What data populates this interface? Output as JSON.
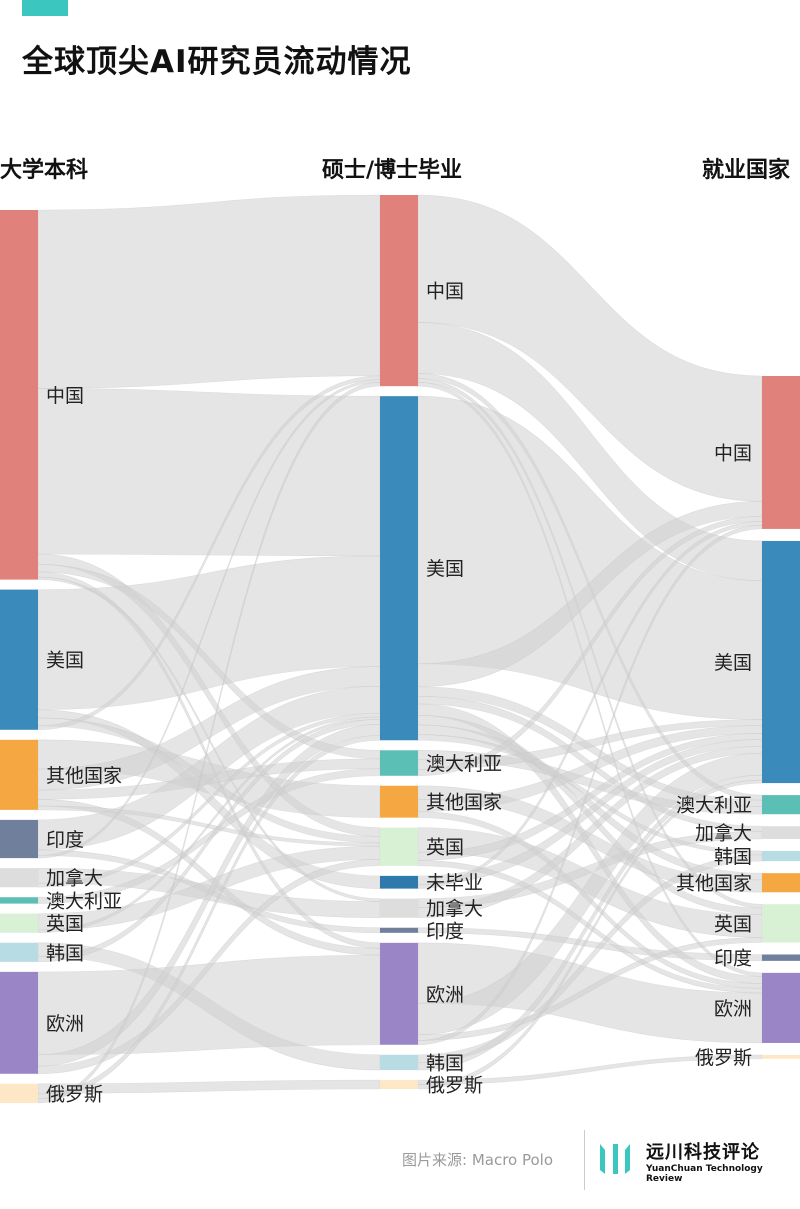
{
  "header": {
    "title": "全球顶尖AI研究员流动情况",
    "accent_color": "#3bc7bf"
  },
  "columns": {
    "undergrad": "大学本科",
    "graduate": "硕士/博士毕业",
    "employment": "就业国家"
  },
  "footer": {
    "source": "图片来源: Macro Polo",
    "brand_name": "远川科技评论",
    "brand_sub": "YuanChuan Technology Review"
  },
  "colors": {
    "中国": "#e0827b",
    "美国": "#3a8bbb",
    "其他国家": "#f5a742",
    "印度": "#6f7f9c",
    "加拿大": "#dddddd",
    "澳大利亚": "#5bbfb5",
    "英国": "#d8f0d3",
    "韩国": "#b8dce3",
    "欧洲": "#9a86c7",
    "俄罗斯": "#fde7c4",
    "未毕业": "#2e7aad",
    "link": "#cfcfcf"
  },
  "chart_data": {
    "type": "sankey",
    "title": "全球顶尖AI研究员流动情况",
    "stages": [
      "大学本科",
      "硕士/博士毕业",
      "就业国家"
    ],
    "nodes": [
      {
        "stage": 0,
        "name": "中国",
        "value": 29
      },
      {
        "stage": 0,
        "name": "美国",
        "value": 11
      },
      {
        "stage": 0,
        "name": "其他国家",
        "value": 5.5
      },
      {
        "stage": 0,
        "name": "印度",
        "value": 3
      },
      {
        "stage": 0,
        "name": "加拿大",
        "value": 1.5
      },
      {
        "stage": 0,
        "name": "澳大利亚",
        "value": 0.5
      },
      {
        "stage": 0,
        "name": "英国",
        "value": 1.5
      },
      {
        "stage": 0,
        "name": "韩国",
        "value": 1.5
      },
      {
        "stage": 0,
        "name": "欧洲",
        "value": 8
      },
      {
        "stage": 0,
        "name": "俄罗斯",
        "value": 1.5
      },
      {
        "stage": 1,
        "name": "中国",
        "value": 15
      },
      {
        "stage": 1,
        "name": "美国",
        "value": 27
      },
      {
        "stage": 1,
        "name": "澳大利亚",
        "value": 2
      },
      {
        "stage": 1,
        "name": "其他国家",
        "value": 2.5
      },
      {
        "stage": 1,
        "name": "英国",
        "value": 3
      },
      {
        "stage": 1,
        "name": "未毕业",
        "value": 1
      },
      {
        "stage": 1,
        "name": "加拿大",
        "value": 1.5
      },
      {
        "stage": 1,
        "name": "印度",
        "value": 0.4
      },
      {
        "stage": 1,
        "name": "欧洲",
        "value": 8
      },
      {
        "stage": 1,
        "name": "韩国",
        "value": 1.2
      },
      {
        "stage": 1,
        "name": "俄罗斯",
        "value": 0.7
      },
      {
        "stage": 2,
        "name": "中国",
        "value": 12
      },
      {
        "stage": 2,
        "name": "美国",
        "value": 19
      },
      {
        "stage": 2,
        "name": "澳大利亚",
        "value": 1.5
      },
      {
        "stage": 2,
        "name": "加拿大",
        "value": 1
      },
      {
        "stage": 2,
        "name": "韩国",
        "value": 0.8
      },
      {
        "stage": 2,
        "name": "其他国家",
        "value": 1.5
      },
      {
        "stage": 2,
        "name": "英国",
        "value": 3
      },
      {
        "stage": 2,
        "name": "印度",
        "value": 0.5
      },
      {
        "stage": 2,
        "name": "欧洲",
        "value": 5.5
      },
      {
        "stage": 2,
        "name": "俄罗斯",
        "value": 0.3
      }
    ]
  }
}
